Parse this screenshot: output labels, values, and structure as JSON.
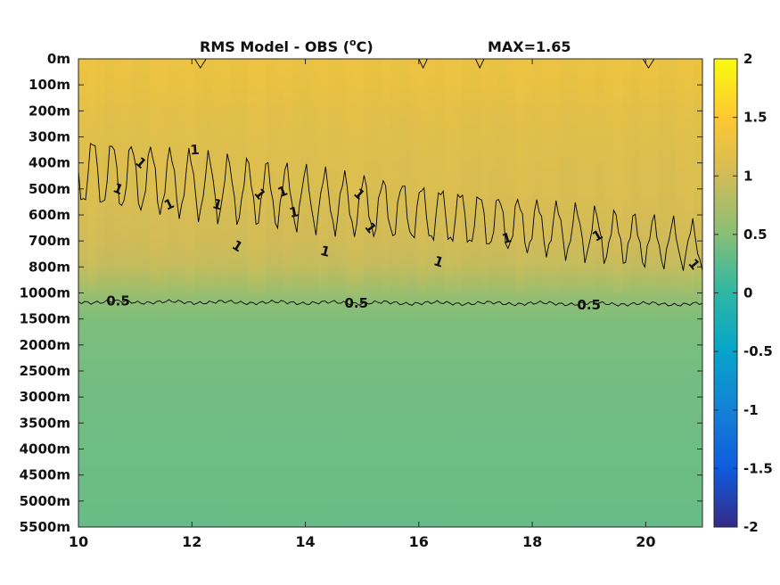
{
  "chart_data": {
    "type": "heatmap",
    "title": "RMS Model - OBS (",
    "title_sup": "o",
    "title_unit_end": "C)",
    "max_label": "MAX=1.65",
    "xlabel": "",
    "ylabel": "",
    "xlim": [
      10,
      21
    ],
    "x_ticks": [
      10,
      12,
      14,
      16,
      18,
      20
    ],
    "x_tick_labels": [
      "10",
      "12",
      "14",
      "16",
      "18",
      "20"
    ],
    "y_tick_labels": [
      "0m",
      "100m",
      "200m",
      "300m",
      "400m",
      "500m",
      "600m",
      "700m",
      "800m",
      "1000m",
      "1500m",
      "2000m",
      "2500m",
      "3000m",
      "3500m",
      "4000m",
      "4500m",
      "5000m",
      "5500m"
    ],
    "colorbar": {
      "range": [
        -2,
        2
      ],
      "ticks": [
        2,
        1.5,
        1,
        0.5,
        0,
        -0.5,
        -1,
        -1.5,
        -2
      ],
      "tick_labels": [
        "2",
        "1.5",
        "1",
        "0.5",
        "0",
        "-0.5",
        "-1",
        "-1.5",
        "-2"
      ],
      "colormap": "parula",
      "colors": [
        "#352a87",
        "#0f5cdd",
        "#1481d6",
        "#06a4ca",
        "#2eb7a4",
        "#87bf77",
        "#d1bb59",
        "#fec832",
        "#f9fb0e"
      ]
    },
    "depth_profile": {
      "depth_labels": [
        "0m",
        "100m",
        "200m",
        "300m",
        "400m",
        "500m",
        "600m",
        "700m",
        "800m",
        "1000m",
        "1500m",
        "2000m",
        "2500m",
        "3000m",
        "3500m",
        "4000m",
        "4500m",
        "5000m",
        "5500m"
      ],
      "rms_values": [
        1.3,
        1.28,
        1.2,
        1.15,
        1.12,
        1.1,
        1.05,
        1.0,
        0.9,
        0.62,
        0.45,
        0.42,
        0.4,
        0.38,
        0.37,
        0.36,
        0.35,
        0.34,
        0.32
      ]
    },
    "contours": [
      {
        "level": 1,
        "label": "1",
        "label_positions": [
          [
            10.7,
            500
          ],
          [
            11.1,
            400
          ],
          [
            11.6,
            560
          ],
          [
            12.05,
            350
          ],
          [
            12.45,
            560
          ],
          [
            12.8,
            720
          ],
          [
            13.2,
            520
          ],
          [
            13.6,
            510
          ],
          [
            13.8,
            590
          ],
          [
            14.35,
            740
          ],
          [
            14.95,
            520
          ],
          [
            15.15,
            650
          ],
          [
            16.35,
            780
          ],
          [
            17.55,
            690
          ],
          [
            19.15,
            680
          ],
          [
            20.85,
            790
          ]
        ]
      },
      {
        "level": 0.5,
        "label": "0.5",
        "label_positions": [
          [
            10.7,
            1150
          ],
          [
            14.9,
            1200
          ],
          [
            19.0,
            1230
          ]
        ]
      }
    ],
    "contour_labels": [
      "1",
      "0.5"
    ]
  }
}
